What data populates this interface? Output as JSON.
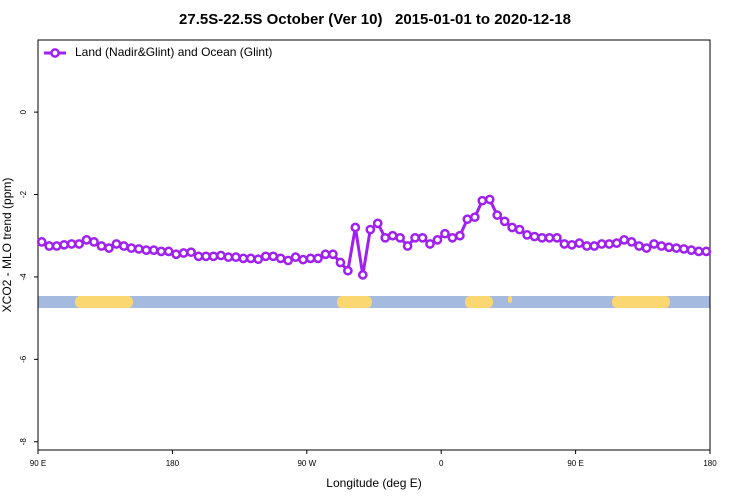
{
  "chart_data": {
    "type": "line",
    "title": "27.5S-22.5S October (Ver 10)   2015-01-01 to 2020-12-18",
    "x_label": "Longitude (deg E)",
    "y_label": "XCO2 - MLO trend (ppm)",
    "x": [
      92.5,
      97.5,
      102.5,
      107.5,
      112.5,
      117.5,
      122.5,
      127.5,
      132.5,
      137.5,
      142.5,
      147.5,
      152.5,
      157.5,
      162.5,
      167.5,
      172.5,
      177.5,
      182.5,
      187.5,
      192.5,
      197.5,
      202.5,
      207.5,
      212.5,
      217.5,
      222.5,
      227.5,
      232.5,
      237.5,
      242.5,
      247.5,
      252.5,
      257.5,
      262.5,
      267.5,
      272.5,
      277.5,
      282.5,
      287.5,
      292.5,
      297.5,
      302.5,
      307.5,
      312.5,
      317.5,
      322.5,
      327.5,
      332.5,
      337.5,
      342.5,
      347.5,
      352.5,
      357.5,
      362.5,
      367.5,
      372.5,
      377.5,
      382.5,
      387.5,
      392.5,
      397.5,
      402.5,
      407.5,
      412.5,
      417.5,
      422.5,
      427.5,
      432.5,
      437.5,
      442.5,
      447.5,
      452.5,
      457.5,
      462.5,
      467.5,
      472.5,
      477.5,
      482.5,
      487.5,
      492.5,
      497.5,
      502.5,
      507.5,
      512.5,
      517.5,
      522.5,
      527.5,
      532.5,
      537.5
    ],
    "series": [
      {
        "name": "Land (Nadir&Glint) and Ocean (Glint)",
        "color": "#a020f0",
        "values": [
          -3.15,
          -3.25,
          -3.25,
          -3.22,
          -3.2,
          -3.2,
          -3.1,
          -3.15,
          -3.25,
          -3.3,
          -3.2,
          -3.25,
          -3.3,
          -3.32,
          -3.35,
          -3.35,
          -3.38,
          -3.38,
          -3.45,
          -3.42,
          -3.4,
          -3.5,
          -3.5,
          -3.5,
          -3.48,
          -3.52,
          -3.52,
          -3.55,
          -3.55,
          -3.57,
          -3.5,
          -3.5,
          -3.55,
          -3.6,
          -3.52,
          -3.58,
          -3.55,
          -3.55,
          -3.45,
          -3.45,
          -3.65,
          -3.85,
          -2.8,
          -3.95,
          -2.85,
          -2.7,
          -3.05,
          -3.0,
          -3.05,
          -3.25,
          -3.05,
          -3.05,
          -3.2,
          -3.1,
          -2.95,
          -3.05,
          -3.0,
          -2.6,
          -2.55,
          -2.15,
          -2.12,
          -2.5,
          -2.65,
          -2.8,
          -2.85,
          -2.98,
          -3.02,
          -3.05,
          -3.05,
          -3.05,
          -3.2,
          -3.22,
          -3.18,
          -3.25,
          -3.25,
          -3.2,
          -3.2,
          -3.18,
          -3.1,
          -3.15,
          -3.25,
          -3.3,
          -3.2,
          -3.25,
          -3.28,
          -3.3,
          -3.32,
          -3.35,
          -3.38,
          -3.38
        ]
      }
    ],
    "xlim": [
      90,
      540
    ],
    "xticks": [
      {
        "value": 90,
        "label": "90 E"
      },
      {
        "value": 180,
        "label": "180"
      },
      {
        "value": 270,
        "label": "90 W"
      },
      {
        "value": 360,
        "label": "0"
      },
      {
        "value": 450,
        "label": "90 E"
      },
      {
        "value": 540,
        "label": "180"
      }
    ],
    "ylim": [
      -8.2,
      1.75
    ],
    "yticks": [
      -8,
      -6,
      -4,
      -2,
      0
    ],
    "legend": "top-left"
  }
}
